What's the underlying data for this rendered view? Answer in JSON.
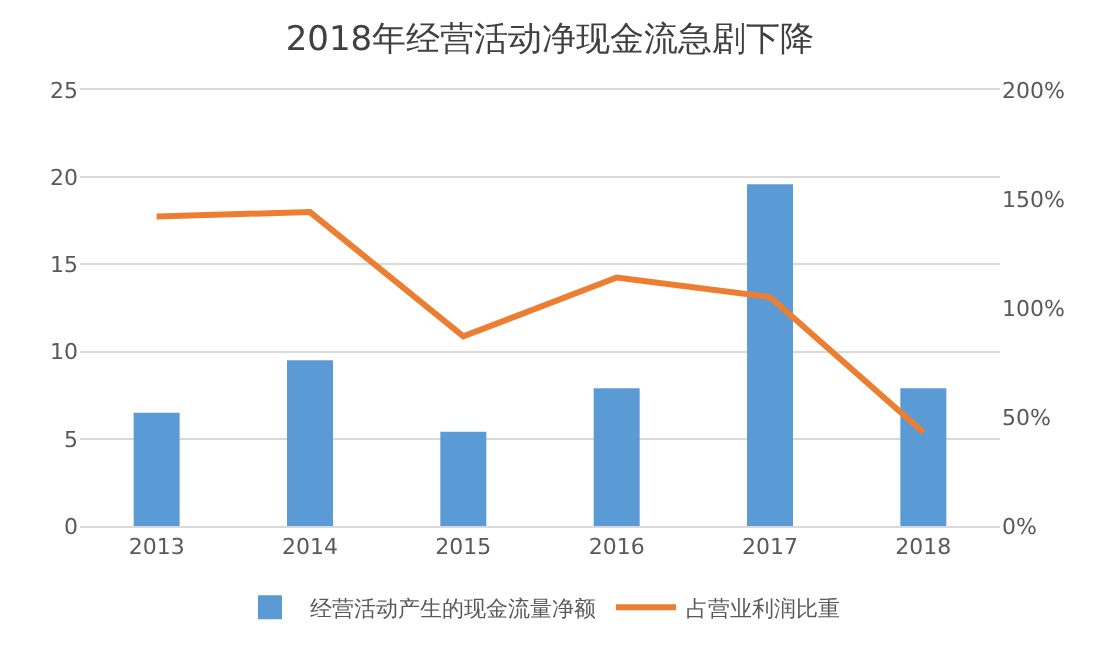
{
  "chart_data": {
    "type": "bar",
    "title": "2018年经营活动净现金流急剧下降",
    "categories": [
      "2013",
      "2014",
      "2015",
      "2016",
      "2017",
      "2018"
    ],
    "series": [
      {
        "name": "经营活动产生的现金流量净额",
        "color": "#5b9bd5",
        "values": [
          6.5,
          9.5,
          5.4,
          7.9,
          19.6,
          7.9
        ]
      },
      {
        "name": "占营业利润比重",
        "type": "line",
        "axis": "y2",
        "color": "#ed7d31",
        "values": [
          142,
          144,
          87,
          114,
          105,
          43
        ]
      }
    ],
    "ylim": [
      0,
      25
    ],
    "yticks": [
      0,
      5,
      10,
      15,
      20,
      25
    ],
    "y2lim": [
      0,
      200
    ],
    "y2ticks": [
      {
        "value": 0,
        "label": "0%"
      },
      {
        "value": 50,
        "label": "50%"
      },
      {
        "value": 100,
        "label": "100%"
      },
      {
        "value": 150,
        "label": "150%"
      },
      {
        "value": 200,
        "label": "200%"
      }
    ],
    "grid": "y",
    "legend": "bottom",
    "marker": "none",
    "line_style": "solid"
  }
}
